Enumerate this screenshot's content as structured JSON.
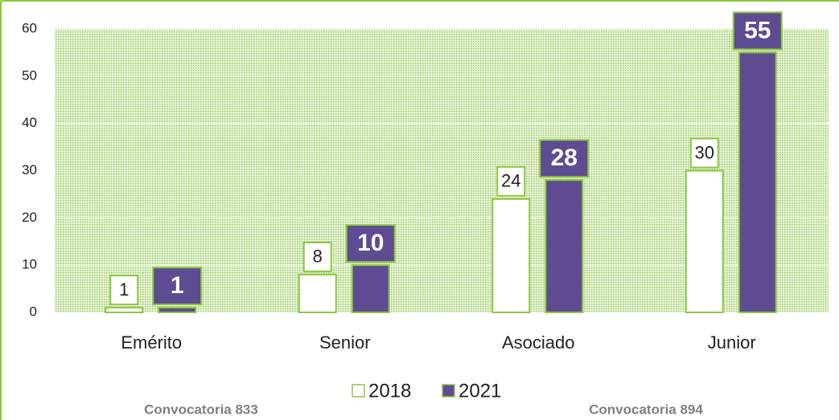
{
  "chart_data": {
    "type": "bar",
    "categories": [
      "Emérito",
      "Senior",
      "Asociado",
      "Junior"
    ],
    "series": [
      {
        "name": "2018",
        "color": "#ffffff",
        "values": [
          1,
          8,
          24,
          30
        ]
      },
      {
        "name": "2021",
        "color": "#5e4b92",
        "values": [
          1,
          10,
          28,
          55
        ]
      }
    ],
    "ylim": [
      0,
      60
    ],
    "yticks": [
      0,
      10,
      20,
      30,
      40,
      50,
      60
    ],
    "grid": true,
    "legend": "bottom",
    "border_color": "#8cc63f",
    "annotations": [
      "Convocatoria 833",
      "Convocatoria 894"
    ]
  }
}
